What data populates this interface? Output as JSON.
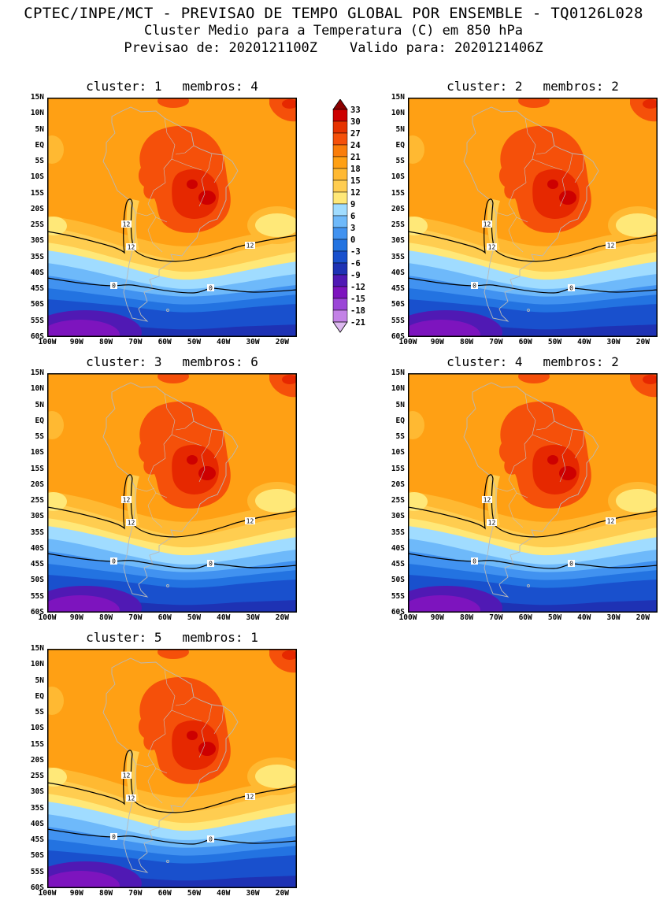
{
  "header": {
    "line1": "CPTEC/INPE/MCT - PREVISAO DE TEMPO GLOBAL POR ENSEMBLE - TQ0126L028",
    "line2": "Cluster Medio para a Temperatura (C) em 850 hPa",
    "line3": "Previsao de: 2020121100Z    Valido para: 2020121406Z"
  },
  "panels": [
    {
      "id": 1,
      "cluster_text": "cluster: 1",
      "membros_text": "membros: 4",
      "cluster": 1,
      "membros": 4
    },
    {
      "id": 2,
      "cluster_text": "cluster: 2",
      "membros_text": "membros: 2",
      "cluster": 2,
      "membros": 2
    },
    {
      "id": 3,
      "cluster_text": "cluster: 3",
      "membros_text": "membros: 6",
      "cluster": 3,
      "membros": 6
    },
    {
      "id": 4,
      "cluster_text": "cluster: 4",
      "membros_text": "membros: 2",
      "cluster": 4,
      "membros": 2
    },
    {
      "id": 5,
      "cluster_text": "cluster: 5",
      "membros_text": "membros: 1",
      "cluster": 5,
      "membros": 1
    }
  ],
  "axes": {
    "lat_labels": [
      "15N",
      "10N",
      "5N",
      "EQ",
      "5S",
      "10S",
      "15S",
      "20S",
      "25S",
      "30S",
      "35S",
      "40S",
      "45S",
      "50S",
      "55S",
      "60S"
    ],
    "lon_labels": [
      "100W",
      "90W",
      "80W",
      "70W",
      "60W",
      "50W",
      "40W",
      "30W",
      "20W"
    ]
  },
  "legend": {
    "levels": [
      "33",
      "30",
      "27",
      "24",
      "21",
      "18",
      "15",
      "12",
      "9",
      "6",
      "3",
      "0",
      "-3",
      "-6",
      "-9",
      "-12",
      "-15",
      "-18",
      "-21"
    ],
    "colors": [
      "#8c0000",
      "#cd0000",
      "#e63200",
      "#f5500a",
      "#fa7d0a",
      "#ffa014",
      "#ffb932",
      "#ffcd50",
      "#ffe878",
      "#a0dcff",
      "#6eb9fa",
      "#4192f0",
      "#2373e1",
      "#1950cd",
      "#1e32b4",
      "#5019b4",
      "#7d14be",
      "#9b46d7",
      "#c382e6",
      "#ddb9f0"
    ]
  },
  "map_contour_labels": {
    "warm": "12",
    "cold": "0"
  },
  "chart_data": {
    "type": "heatmap",
    "title": "CPTEC/INPE/MCT - PREVISAO DE TEMPO GLOBAL POR ENSEMBLE - TQ0126L028",
    "subtitle": "Cluster Medio para a Temperatura (C) em 850 hPa",
    "forecast_init": "2020121100Z",
    "forecast_valid": "2020121406Z",
    "variable": "Temperatura (C) em 850 hPa",
    "region": "South America",
    "panels": [
      {
        "cluster": 1,
        "membros": 4
      },
      {
        "cluster": 2,
        "membros": 2
      },
      {
        "cluster": 3,
        "membros": 6
      },
      {
        "cluster": 4,
        "membros": 2
      },
      {
        "cluster": 5,
        "membros": 1
      }
    ],
    "x_ticks": [
      "100W",
      "90W",
      "80W",
      "70W",
      "60W",
      "50W",
      "40W",
      "30W",
      "20W"
    ],
    "y_ticks": [
      "15N",
      "10N",
      "5N",
      "EQ",
      "5S",
      "10S",
      "15S",
      "20S",
      "25S",
      "30S",
      "35S",
      "40S",
      "45S",
      "50S",
      "55S",
      "60S"
    ],
    "colorbar_levels_c": [
      33,
      30,
      27,
      24,
      21,
      18,
      15,
      12,
      9,
      6,
      3,
      0,
      -3,
      -6,
      -9,
      -12,
      -15,
      -18,
      -21
    ],
    "labeled_contours_c": [
      12,
      0
    ],
    "legend_position": "vertical colorbar between top two panels",
    "grid": "off"
  }
}
